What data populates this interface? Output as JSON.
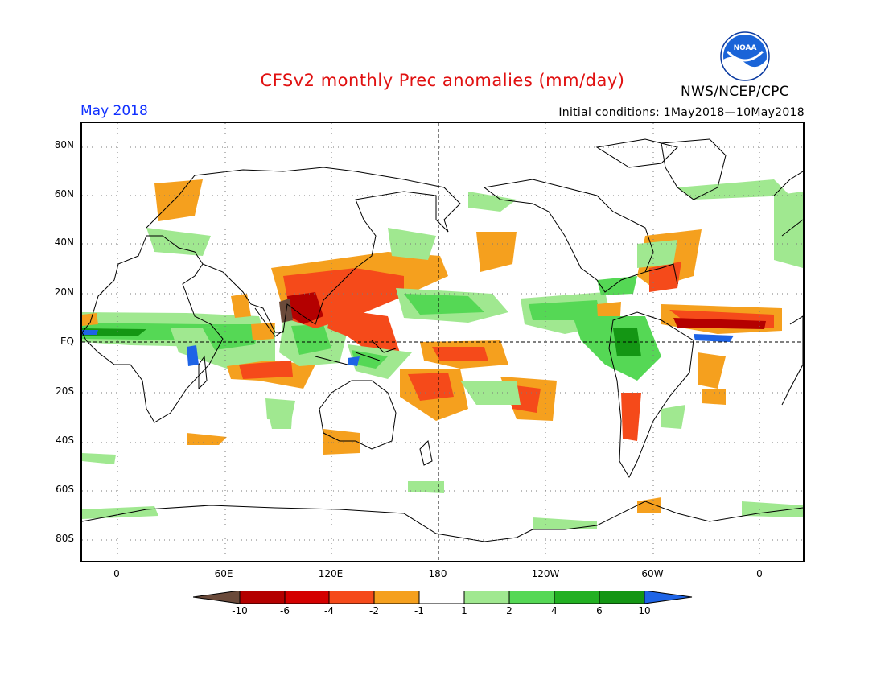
{
  "title": "CFSv2 monthly Prec anomalies (mm/day)",
  "agency": "NWS/NCEP/CPC",
  "logo_text": "NOAA",
  "period": "May 2018",
  "initial_conditions": "Initial conditions: 1May2018—10May2018",
  "lat_labels": [
    "80N",
    "60N",
    "40N",
    "20N",
    "EQ",
    "20S",
    "40S",
    "60S",
    "80S"
  ],
  "lon_labels": [
    "0",
    "60E",
    "120E",
    "180",
    "120W",
    "60W",
    "0"
  ],
  "colorbar": {
    "labels": [
      "-10",
      "-6",
      "-4",
      "-2",
      "-1",
      "1",
      "2",
      "4",
      "6",
      "10"
    ],
    "colors": [
      "#6a4a3a",
      "#b40000",
      "#d40000",
      "#f54a1a",
      "#f5a01e",
      "#ffffff",
      "#a0e890",
      "#55d855",
      "#22b022",
      "#149614",
      "#1e64e6"
    ]
  },
  "palette": {
    "dark_brown": "#6a4a3a",
    "dark_red": "#b40000",
    "red": "#d40000",
    "red_orange": "#f54a1a",
    "orange": "#f5a01e",
    "light_green": "#a0e890",
    "green": "#55d855",
    "mid_green": "#22b022",
    "dark_green": "#149614",
    "blue": "#1e64e6",
    "title_red": "#e01010",
    "period_blue": "#1030ff"
  }
}
